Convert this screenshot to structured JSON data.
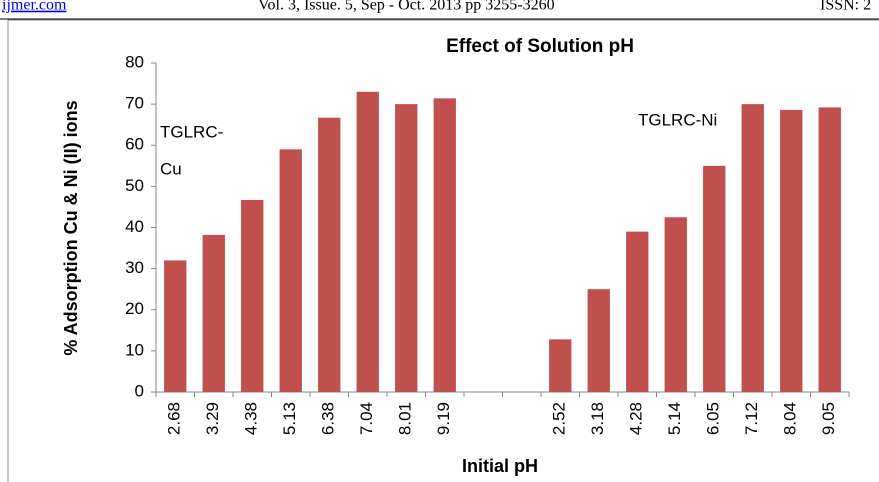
{
  "header": {
    "left": "ijmer.com",
    "center": "Vol. 3, Issue. 5, Sep - Oct. 2013 pp 3255-3260",
    "right": "ISSN: 2"
  },
  "chart_data": {
    "type": "bar",
    "title": "Effect of Solution pH",
    "x_label": "Initial pH",
    "y_label": "% Adsorption Cu & Ni (II) ions",
    "categories": [
      "2.68",
      "3.29",
      "4.38",
      "5.13",
      "6.38",
      "7.04",
      "8.01",
      "9.19",
      null,
      null,
      "2.52",
      "3.18",
      "4.28",
      "5.14",
      "6.05",
      "7.12",
      "8.04",
      "9.05"
    ],
    "values": [
      32,
      38.2,
      46.7,
      59,
      66.7,
      73,
      70,
      71.4,
      null,
      null,
      12.8,
      25,
      39,
      42.5,
      55,
      70,
      68.6,
      69.2
    ],
    "color": "#c0504d",
    "ylim": [
      0,
      80
    ],
    "yticks": [
      0,
      10,
      20,
      30,
      40,
      50,
      60,
      70,
      80
    ],
    "grid": false,
    "annotations": [
      "TGLRC-",
      "Cu",
      "TGLRC-Ni"
    ]
  }
}
